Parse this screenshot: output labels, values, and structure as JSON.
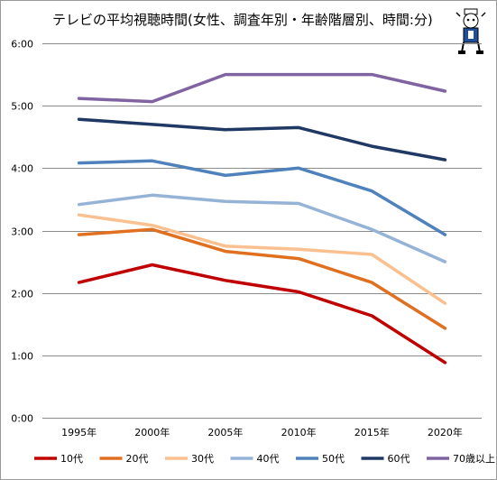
{
  "chart_data": {
    "type": "line",
    "title": "テレビの平均視聴時間(女性、調査年別・年齢階層別、時間:分)",
    "categories": [
      "1995年",
      "2000年",
      "2005年",
      "2010年",
      "2015年",
      "2020年"
    ],
    "y_tick_labels": [
      "0:00",
      "1:00",
      "2:00",
      "3:00",
      "4:00",
      "5:00",
      "6:00"
    ],
    "ylim": [
      0,
      360
    ],
    "y_unit": "minutes",
    "grid": true,
    "legend_position": "bottom",
    "series": [
      {
        "name": "10代",
        "color": "#c00000",
        "values": [
          130,
          147,
          132,
          121,
          98,
          53
        ]
      },
      {
        "name": "20代",
        "color": "#e07020",
        "values": [
          176,
          181,
          160,
          153,
          130,
          86
        ]
      },
      {
        "name": "30代",
        "color": "#fac090",
        "values": [
          195,
          185,
          165,
          162,
          157,
          110
        ]
      },
      {
        "name": "40代",
        "color": "#95b3d7",
        "values": [
          205,
          214,
          208,
          206,
          181,
          150
        ]
      },
      {
        "name": "50代",
        "color": "#4f81bd",
        "values": [
          245,
          247,
          233,
          240,
          218,
          176
        ]
      },
      {
        "name": "60代",
        "color": "#1f3864",
        "values": [
          287,
          282,
          277,
          279,
          261,
          248
        ]
      },
      {
        "name": "70歳以上",
        "color": "#8064a2",
        "values": [
          307,
          304,
          330,
          330,
          330,
          314
        ]
      }
    ]
  }
}
